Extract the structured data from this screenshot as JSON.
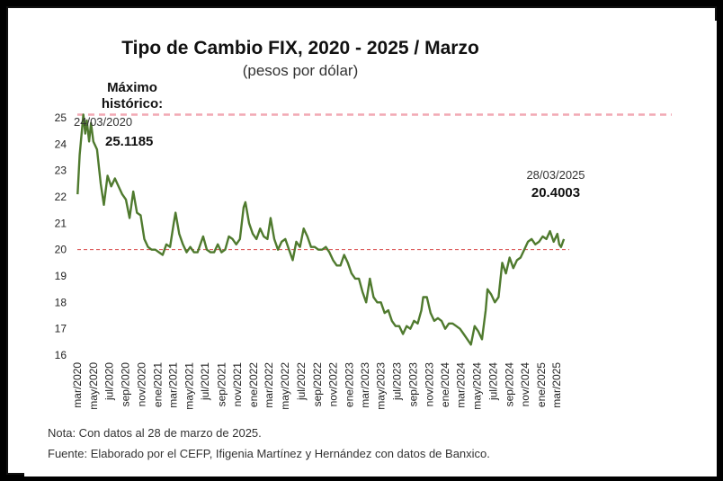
{
  "chart_data": {
    "type": "line",
    "title": "Tipo de Cambio FIX, 2020 - 2025 / Marzo",
    "subtitle": "(pesos por dólar)",
    "xlabel": "",
    "ylabel": "",
    "ylim": [
      16,
      25
    ],
    "yticks": [
      "25",
      "24",
      "23",
      "22",
      "21",
      "20",
      "19",
      "18",
      "17",
      "16"
    ],
    "xticks": [
      "mar/2020",
      "may/2020",
      "jul/2020",
      "sep/2020",
      "nov/2020",
      "ene/2021",
      "mar/2021",
      "may/2021",
      "jul/2021",
      "sep/2021",
      "nov/2021",
      "ene/2022",
      "mar/2022",
      "may/2022",
      "jul/2022",
      "sep/2022",
      "nov/2022",
      "ene/2023",
      "mar/2023",
      "may/2023",
      "jul/2023",
      "sep/2023",
      "nov/2023",
      "ene/2024",
      "mar/2024",
      "may/2024",
      "jul/2024",
      "sep/2024",
      "nov/2024",
      "ene/2025",
      "mar/2025"
    ],
    "series": [
      {
        "color": "#4f7a2e",
        "points": [
          [
            "2020-03-02",
            22.1
          ],
          [
            "2020-03-10",
            23.6
          ],
          [
            "2020-03-24",
            25.12
          ],
          [
            "2020-03-31",
            24.4
          ],
          [
            "2020-04-06",
            24.9
          ],
          [
            "2020-04-15",
            24.1
          ],
          [
            "2020-04-22",
            24.8
          ],
          [
            "2020-05-01",
            24.1
          ],
          [
            "2020-05-15",
            23.8
          ],
          [
            "2020-05-29",
            22.5
          ],
          [
            "2020-06-10",
            21.7
          ],
          [
            "2020-06-24",
            22.8
          ],
          [
            "2020-07-08",
            22.4
          ],
          [
            "2020-07-22",
            22.7
          ],
          [
            "2020-08-05",
            22.4
          ],
          [
            "2020-08-19",
            22.1
          ],
          [
            "2020-09-02",
            21.9
          ],
          [
            "2020-09-16",
            21.2
          ],
          [
            "2020-09-30",
            22.2
          ],
          [
            "2020-10-14",
            21.4
          ],
          [
            "2020-10-28",
            21.3
          ],
          [
            "2020-11-11",
            20.4
          ],
          [
            "2020-11-25",
            20.1
          ],
          [
            "2020-12-09",
            20.0
          ],
          [
            "2020-12-23",
            20.0
          ],
          [
            "2021-01-06",
            19.9
          ],
          [
            "2021-01-20",
            19.8
          ],
          [
            "2021-02-03",
            20.2
          ],
          [
            "2021-02-17",
            20.1
          ],
          [
            "2021-03-03",
            21.0
          ],
          [
            "2021-03-10",
            21.4
          ],
          [
            "2021-03-24",
            20.6
          ],
          [
            "2021-04-07",
            20.2
          ],
          [
            "2021-04-21",
            19.9
          ],
          [
            "2021-05-05",
            20.1
          ],
          [
            "2021-05-19",
            19.9
          ],
          [
            "2021-06-02",
            19.9
          ],
          [
            "2021-06-16",
            20.3
          ],
          [
            "2021-06-23",
            20.5
          ],
          [
            "2021-07-07",
            20.0
          ],
          [
            "2021-07-21",
            19.9
          ],
          [
            "2021-08-04",
            19.9
          ],
          [
            "2021-08-18",
            20.2
          ],
          [
            "2021-09-01",
            19.9
          ],
          [
            "2021-09-15",
            20.0
          ],
          [
            "2021-09-29",
            20.5
          ],
          [
            "2021-10-13",
            20.4
          ],
          [
            "2021-10-27",
            20.2
          ],
          [
            "2021-11-10",
            20.4
          ],
          [
            "2021-11-24",
            21.6
          ],
          [
            "2021-12-01",
            21.8
          ],
          [
            "2021-12-15",
            21.0
          ],
          [
            "2021-12-29",
            20.6
          ],
          [
            "2022-01-12",
            20.4
          ],
          [
            "2022-01-26",
            20.8
          ],
          [
            "2022-02-09",
            20.5
          ],
          [
            "2022-02-23",
            20.4
          ],
          [
            "2022-03-07",
            21.2
          ],
          [
            "2022-03-21",
            20.4
          ],
          [
            "2022-04-04",
            20.0
          ],
          [
            "2022-04-18",
            20.3
          ],
          [
            "2022-05-02",
            20.4
          ],
          [
            "2022-05-16",
            20.0
          ],
          [
            "2022-05-30",
            19.6
          ],
          [
            "2022-06-13",
            20.3
          ],
          [
            "2022-06-27",
            20.1
          ],
          [
            "2022-07-11",
            20.8
          ],
          [
            "2022-07-25",
            20.5
          ],
          [
            "2022-08-08",
            20.1
          ],
          [
            "2022-08-22",
            20.1
          ],
          [
            "2022-09-05",
            20.0
          ],
          [
            "2022-09-19",
            20.0
          ],
          [
            "2022-10-03",
            20.1
          ],
          [
            "2022-10-17",
            19.9
          ],
          [
            "2022-10-31",
            19.6
          ],
          [
            "2022-11-14",
            19.4
          ],
          [
            "2022-11-28",
            19.4
          ],
          [
            "2022-12-12",
            19.8
          ],
          [
            "2022-12-26",
            19.5
          ],
          [
            "2023-01-09",
            19.1
          ],
          [
            "2023-01-23",
            18.9
          ],
          [
            "2023-02-06",
            18.9
          ],
          [
            "2023-02-20",
            18.4
          ],
          [
            "2023-03-06",
            18.0
          ],
          [
            "2023-03-20",
            18.9
          ],
          [
            "2023-04-03",
            18.2
          ],
          [
            "2023-04-17",
            18.0
          ],
          [
            "2023-05-01",
            18.0
          ],
          [
            "2023-05-15",
            17.6
          ],
          [
            "2023-05-29",
            17.7
          ],
          [
            "2023-06-12",
            17.3
          ],
          [
            "2023-06-26",
            17.1
          ],
          [
            "2023-07-10",
            17.1
          ],
          [
            "2023-07-24",
            16.8
          ],
          [
            "2023-08-07",
            17.1
          ],
          [
            "2023-08-21",
            17.0
          ],
          [
            "2023-09-04",
            17.3
          ],
          [
            "2023-09-18",
            17.2
          ],
          [
            "2023-10-02",
            17.7
          ],
          [
            "2023-10-09",
            18.2
          ],
          [
            "2023-10-23",
            18.2
          ],
          [
            "2023-11-06",
            17.6
          ],
          [
            "2023-11-20",
            17.3
          ],
          [
            "2023-12-04",
            17.4
          ],
          [
            "2023-12-18",
            17.3
          ],
          [
            "2024-01-01",
            17.0
          ],
          [
            "2024-01-15",
            17.2
          ],
          [
            "2024-01-29",
            17.2
          ],
          [
            "2024-02-12",
            17.1
          ],
          [
            "2024-02-26",
            17.0
          ],
          [
            "2024-03-11",
            16.8
          ],
          [
            "2024-03-25",
            16.6
          ],
          [
            "2024-04-08",
            16.4
          ],
          [
            "2024-04-22",
            17.1
          ],
          [
            "2024-05-06",
            16.9
          ],
          [
            "2024-05-20",
            16.6
          ],
          [
            "2024-06-03",
            17.7
          ],
          [
            "2024-06-10",
            18.5
          ],
          [
            "2024-06-24",
            18.3
          ],
          [
            "2024-07-08",
            18.0
          ],
          [
            "2024-07-22",
            18.2
          ],
          [
            "2024-08-05",
            19.5
          ],
          [
            "2024-08-19",
            19.1
          ],
          [
            "2024-09-02",
            19.7
          ],
          [
            "2024-09-16",
            19.3
          ],
          [
            "2024-09-30",
            19.6
          ],
          [
            "2024-10-14",
            19.7
          ],
          [
            "2024-10-28",
            20.0
          ],
          [
            "2024-11-11",
            20.3
          ],
          [
            "2024-11-25",
            20.4
          ],
          [
            "2024-12-09",
            20.2
          ],
          [
            "2024-12-23",
            20.3
          ],
          [
            "2025-01-06",
            20.5
          ],
          [
            "2025-01-20",
            20.4
          ],
          [
            "2025-02-03",
            20.7
          ],
          [
            "2025-02-17",
            20.3
          ],
          [
            "2025-03-03",
            20.6
          ],
          [
            "2025-03-10",
            20.2
          ],
          [
            "2025-03-17",
            20.1
          ],
          [
            "2025-03-28",
            20.4
          ]
        ]
      }
    ],
    "reference_lines": [
      {
        "y": 25.1185,
        "color": "#f2a9b4",
        "style": "dashed"
      },
      {
        "y": 20.0,
        "color": "#d94a4a",
        "style": "dashed"
      }
    ],
    "annotations": [
      {
        "lines": [
          "Máximo",
          "histórico:"
        ],
        "bold": true
      },
      {
        "date": "24/03/2020",
        "value": "25.1185"
      },
      {
        "date": "28/03/2025",
        "value": "20.4003"
      }
    ],
    "grid": false,
    "legend": "none"
  },
  "notes": {
    "line1": "Nota: Con datos al 28 de marzo de 2025.",
    "line2": "Fuente: Elaborado por el CEFP, Ifigenia Martínez y Hernández con datos de Banxico."
  }
}
